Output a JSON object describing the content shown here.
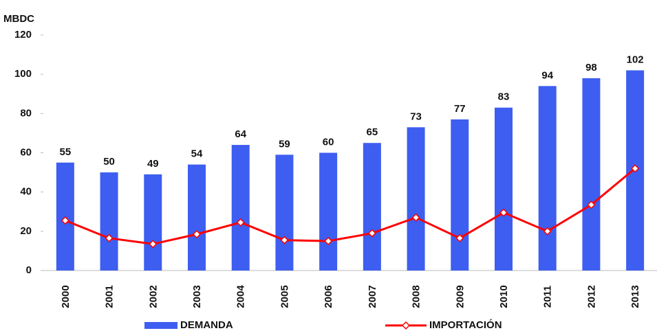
{
  "chart_data": {
    "type": "bar",
    "y_label": "MBDC",
    "categories": [
      "2000",
      "2001",
      "2002",
      "2003",
      "2004",
      "2005",
      "2006",
      "2007",
      "2008",
      "2009",
      "2010",
      "2011",
      "2012",
      "2013"
    ],
    "series": [
      {
        "name": "DEMANDA",
        "type": "bar",
        "color": "#3d5ef0",
        "values": [
          55,
          50,
          49,
          54,
          64,
          59,
          60,
          65,
          73,
          77,
          83,
          94,
          98,
          102
        ]
      },
      {
        "name": "IMPORTACIÓN",
        "type": "line",
        "color": "#ff0000",
        "values": [
          25.5,
          16.5,
          13.5,
          18.5,
          24.5,
          15.5,
          15,
          19,
          27,
          16.5,
          29.5,
          20,
          33.5,
          52
        ]
      }
    ],
    "ylim": [
      0,
      120
    ],
    "yticks": [
      0,
      20,
      40,
      60,
      80,
      100,
      120
    ],
    "data_labels": true
  }
}
